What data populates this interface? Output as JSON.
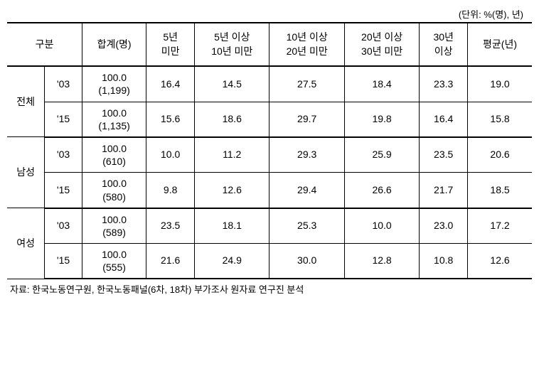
{
  "unit_label": "(단위: %(명), 년)",
  "header": {
    "gubun": "구분",
    "total": "합계(명)",
    "b1": "5년\n미만",
    "b2": "5년 이상\n10년 미만",
    "b3": "10년 이상\n20년 미만",
    "b4": "20년 이상\n30년 미만",
    "b5": "30년\n이상",
    "avg": "평균(년)"
  },
  "groups": [
    {
      "label": "전체",
      "rows": [
        {
          "year": "'03",
          "total_pct": "100.0",
          "total_n": "(1,199)",
          "b1": "16.4",
          "b2": "14.5",
          "b3": "27.5",
          "b4": "18.4",
          "b5": "23.3",
          "avg": "19.0"
        },
        {
          "year": "'15",
          "total_pct": "100.0",
          "total_n": "(1,135)",
          "b1": "15.6",
          "b2": "18.6",
          "b3": "29.7",
          "b4": "19.8",
          "b5": "16.4",
          "avg": "15.8"
        }
      ]
    },
    {
      "label": "남성",
      "rows": [
        {
          "year": "'03",
          "total_pct": "100.0",
          "total_n": "(610)",
          "b1": "10.0",
          "b2": "11.2",
          "b3": "29.3",
          "b4": "25.9",
          "b5": "23.5",
          "avg": "20.6"
        },
        {
          "year": "'15",
          "total_pct": "100.0",
          "total_n": "(580)",
          "b1": "9.8",
          "b2": "12.6",
          "b3": "29.4",
          "b4": "26.6",
          "b5": "21.7",
          "avg": "18.5"
        }
      ]
    },
    {
      "label": "여성",
      "rows": [
        {
          "year": "'03",
          "total_pct": "100.0",
          "total_n": "(589)",
          "b1": "23.5",
          "b2": "18.1",
          "b3": "25.3",
          "b4": "10.0",
          "b5": "23.0",
          "avg": "17.2"
        },
        {
          "year": "'15",
          "total_pct": "100.0",
          "total_n": "(555)",
          "b1": "21.6",
          "b2": "24.9",
          "b3": "30.0",
          "b4": "12.8",
          "b5": "10.8",
          "avg": "12.6"
        }
      ]
    }
  ],
  "source_note": "자료: 한국노동연구원, 한국노동패널(6차, 18차) 부가조사 원자료 연구진 분석",
  "colors": {
    "text": "#000000",
    "background": "#ffffff",
    "border": "#000000"
  }
}
